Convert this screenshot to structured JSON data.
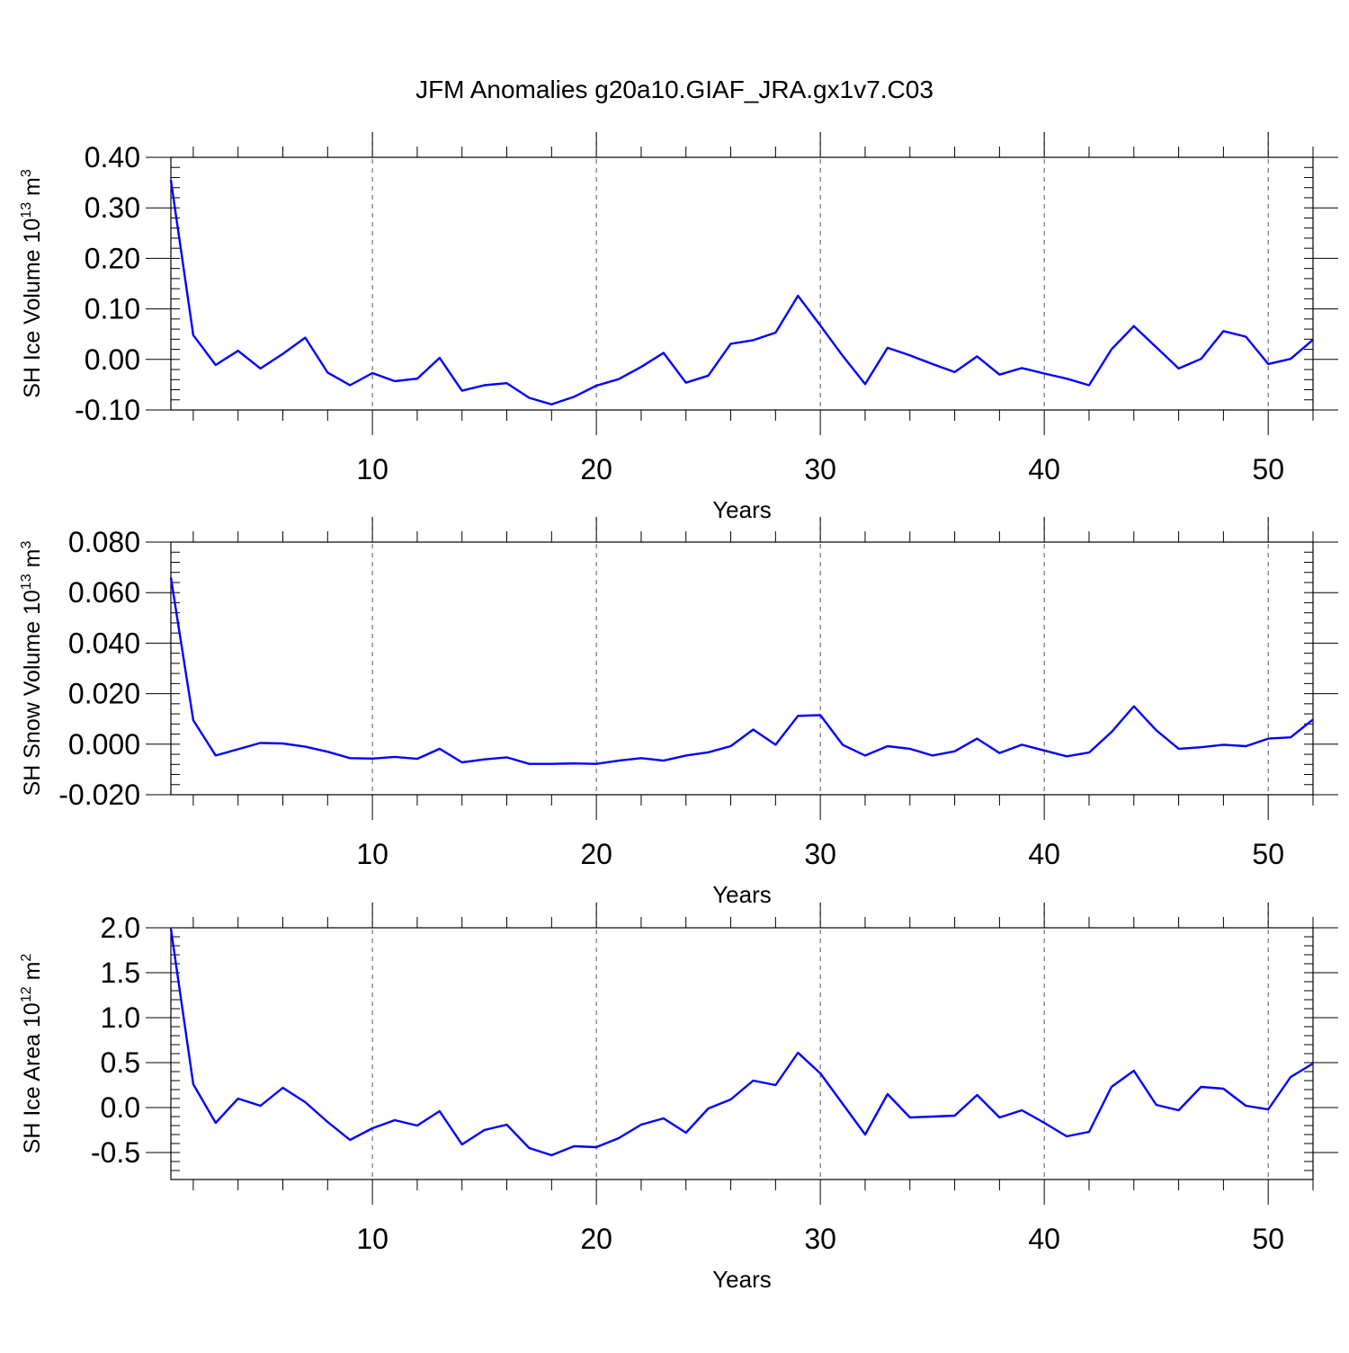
{
  "figure": {
    "title": "JFM Anomalies g20a10.GIAF_JRA.gx1v7.C03"
  },
  "chart_data": [
    {
      "type": "line",
      "ylabel_main": "SH Ice Volume 10",
      "ylabel_exp": "13",
      "ylabel_unit": " m",
      "ylabel_unit_exp": "3",
      "xlabel": "Years",
      "xlim": [
        1,
        52
      ],
      "ylim": [
        -0.1,
        0.4
      ],
      "yticks": [
        -0.1,
        0.0,
        0.1,
        0.2,
        0.3,
        0.4
      ],
      "ytick_labels": [
        "-0.10",
        "0.00",
        "0.10",
        "0.20",
        "0.30",
        "0.40"
      ],
      "yminor_step": 0.02,
      "xticks": [
        10,
        20,
        30,
        40,
        50
      ],
      "xtick_labels": [
        "10",
        "20",
        "30",
        "40",
        "50"
      ],
      "grid": "dashed vertical at major x ticks",
      "line_color": "#0000ff",
      "x": [
        1,
        2,
        3,
        4,
        5,
        6,
        7,
        8,
        9,
        10,
        11,
        12,
        13,
        14,
        15,
        16,
        17,
        18,
        19,
        20,
        21,
        22,
        23,
        24,
        25,
        26,
        27,
        28,
        29,
        30,
        31,
        32,
        33,
        34,
        35,
        36,
        37,
        38,
        39,
        40,
        41,
        42,
        43,
        44,
        45,
        46,
        47,
        48,
        49,
        50,
        51,
        52
      ],
      "values": [
        0.355,
        0.048,
        -0.011,
        0.017,
        -0.018,
        0.011,
        0.043,
        -0.026,
        -0.051,
        -0.027,
        -0.043,
        -0.038,
        0.003,
        -0.062,
        -0.051,
        -0.047,
        -0.076,
        -0.089,
        -0.074,
        -0.052,
        -0.039,
        -0.015,
        0.013,
        -0.046,
        -0.032,
        0.031,
        0.038,
        0.053,
        0.126,
        0.067,
        0.007,
        -0.049,
        0.023,
        0.008,
        -0.009,
        -0.025,
        0.006,
        -0.03,
        -0.017,
        -0.028,
        -0.038,
        -0.051,
        0.02,
        0.066,
        0.024,
        -0.018,
        0.001,
        0.056,
        0.045,
        -0.009,
        0.001,
        0.039
      ]
    },
    {
      "type": "line",
      "ylabel_main": "SH Snow Volume 10",
      "ylabel_exp": "13",
      "ylabel_unit": " m",
      "ylabel_unit_exp": "3",
      "xlabel": "Years",
      "xlim": [
        1,
        52
      ],
      "ylim": [
        -0.02,
        0.08
      ],
      "yticks": [
        -0.02,
        0.0,
        0.02,
        0.04,
        0.06,
        0.08
      ],
      "ytick_labels": [
        "-0.020",
        "0.000",
        "0.020",
        "0.040",
        "0.060",
        "0.080"
      ],
      "yminor_step": 0.004,
      "xticks": [
        10,
        20,
        30,
        40,
        50
      ],
      "xtick_labels": [
        "10",
        "20",
        "30",
        "40",
        "50"
      ],
      "grid": "dashed vertical at major x ticks",
      "line_color": "#0000ff",
      "x": [
        1,
        2,
        3,
        4,
        5,
        6,
        7,
        8,
        9,
        10,
        11,
        12,
        13,
        14,
        15,
        16,
        17,
        18,
        19,
        20,
        21,
        22,
        23,
        24,
        25,
        26,
        27,
        28,
        29,
        30,
        31,
        32,
        33,
        34,
        35,
        36,
        37,
        38,
        39,
        40,
        41,
        42,
        43,
        44,
        45,
        46,
        47,
        48,
        49,
        50,
        51,
        52
      ],
      "values": [
        0.066,
        0.0095,
        -0.0045,
        -0.002,
        0.0005,
        0.0003,
        -0.001,
        -0.003,
        -0.0055,
        -0.0057,
        -0.005,
        -0.0058,
        -0.0018,
        -0.0072,
        -0.006,
        -0.0052,
        -0.0078,
        -0.0078,
        -0.0076,
        -0.0078,
        -0.0065,
        -0.0055,
        -0.0065,
        -0.0045,
        -0.0032,
        -0.0008,
        0.0058,
        -0.0002,
        0.0112,
        0.0115,
        -0.0003,
        -0.0045,
        -0.0008,
        -0.0018,
        -0.0045,
        -0.0028,
        0.0022,
        -0.0035,
        -0.0002,
        -0.0025,
        -0.0048,
        -0.0033,
        0.0048,
        0.015,
        0.0055,
        -0.0018,
        -0.0012,
        -0.0002,
        -0.0008,
        0.0022,
        0.0027,
        0.0098
      ]
    },
    {
      "type": "line",
      "ylabel_main": "SH Ice Area 10",
      "ylabel_exp": "12",
      "ylabel_unit": " m",
      "ylabel_unit_exp": "2",
      "xlabel": "Years",
      "xlim": [
        1,
        52
      ],
      "ylim": [
        -0.8,
        2.0
      ],
      "yticks": [
        -0.5,
        0.0,
        0.5,
        1.0,
        1.5,
        2.0
      ],
      "ytick_labels": [
        "-0.5",
        "0.0",
        "0.5",
        "1.0",
        "1.5",
        "2.0"
      ],
      "yminor_step": 0.1,
      "xticks": [
        10,
        20,
        30,
        40,
        50
      ],
      "xtick_labels": [
        "10",
        "20",
        "30",
        "40",
        "50"
      ],
      "grid": "dashed vertical at major x ticks",
      "line_color": "#0000ff",
      "x": [
        1,
        2,
        3,
        4,
        5,
        6,
        7,
        8,
        9,
        10,
        11,
        12,
        13,
        14,
        15,
        16,
        17,
        18,
        19,
        20,
        21,
        22,
        23,
        24,
        25,
        26,
        27,
        28,
        29,
        30,
        31,
        32,
        33,
        34,
        35,
        36,
        37,
        38,
        39,
        40,
        41,
        42,
        43,
        44,
        45,
        46,
        47,
        48,
        49,
        50,
        51,
        52
      ],
      "values": [
        1.99,
        0.26,
        -0.17,
        0.1,
        0.02,
        0.22,
        0.06,
        -0.16,
        -0.36,
        -0.23,
        -0.14,
        -0.2,
        -0.04,
        -0.41,
        -0.25,
        -0.19,
        -0.45,
        -0.53,
        -0.43,
        -0.44,
        -0.34,
        -0.19,
        -0.12,
        -0.28,
        -0.01,
        0.09,
        0.3,
        0.25,
        0.61,
        0.38,
        0.04,
        -0.3,
        0.15,
        -0.11,
        -0.1,
        -0.09,
        0.14,
        -0.11,
        -0.03,
        -0.17,
        -0.32,
        -0.27,
        0.23,
        0.41,
        0.03,
        -0.03,
        0.23,
        0.21,
        0.02,
        -0.02,
        0.34,
        0.49
      ]
    }
  ]
}
